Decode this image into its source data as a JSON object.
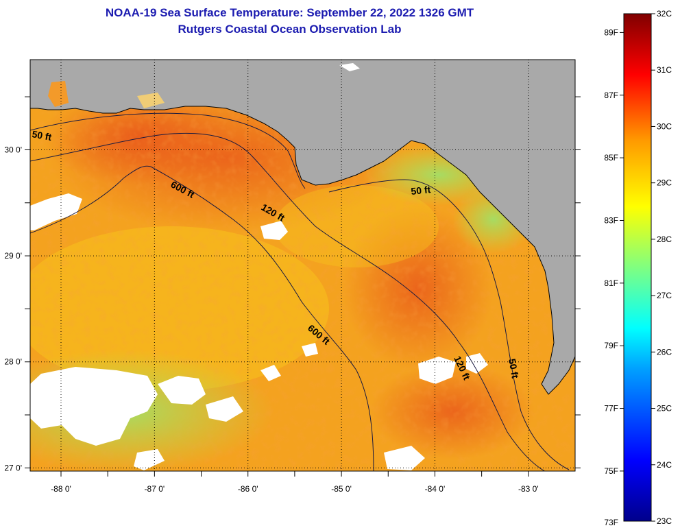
{
  "header": {
    "title": "NOAA-19 Sea Surface Temperature:  September 22, 2022 1326 GMT",
    "subtitle": "Rutgers Coastal Ocean Observation Lab"
  },
  "map": {
    "lon_range": [
      -88.33,
      -82.5
    ],
    "lat_range": [
      26.97,
      30.85
    ],
    "lon_ticks": [
      {
        "value": -88,
        "label": "-88 0'"
      },
      {
        "value": -87,
        "label": "-87 0'"
      },
      {
        "value": -86,
        "label": "-86 0'"
      },
      {
        "value": -85,
        "label": "-85 0'"
      },
      {
        "value": -84,
        "label": "-84 0'"
      },
      {
        "value": -83,
        "label": "-83 0'"
      }
    ],
    "lat_ticks": [
      {
        "value": 30,
        "label": "30 0'"
      },
      {
        "value": 29,
        "label": "29 0'"
      },
      {
        "value": 28,
        "label": "28 0'"
      },
      {
        "value": 27,
        "label": "27 0'"
      }
    ],
    "contour_labels": [
      "50 ft",
      "600 ft",
      "120 ft",
      "50 ft",
      "600 ft",
      "120 ft",
      "50 ft"
    ],
    "colors": {
      "land": "#a9a9a9",
      "cloud": "#ffffff",
      "water_warm": "#f08a1a",
      "water_cool": "#b5e24a"
    }
  },
  "colorbar": {
    "celsius": [
      "32C",
      "31C",
      "30C",
      "29C",
      "28C",
      "27C",
      "26C",
      "25C",
      "24C",
      "23C"
    ],
    "fahrenheit": [
      "89F",
      "87F",
      "85F",
      "83F",
      "81F",
      "79F",
      "77F",
      "75F",
      "73F"
    ]
  }
}
